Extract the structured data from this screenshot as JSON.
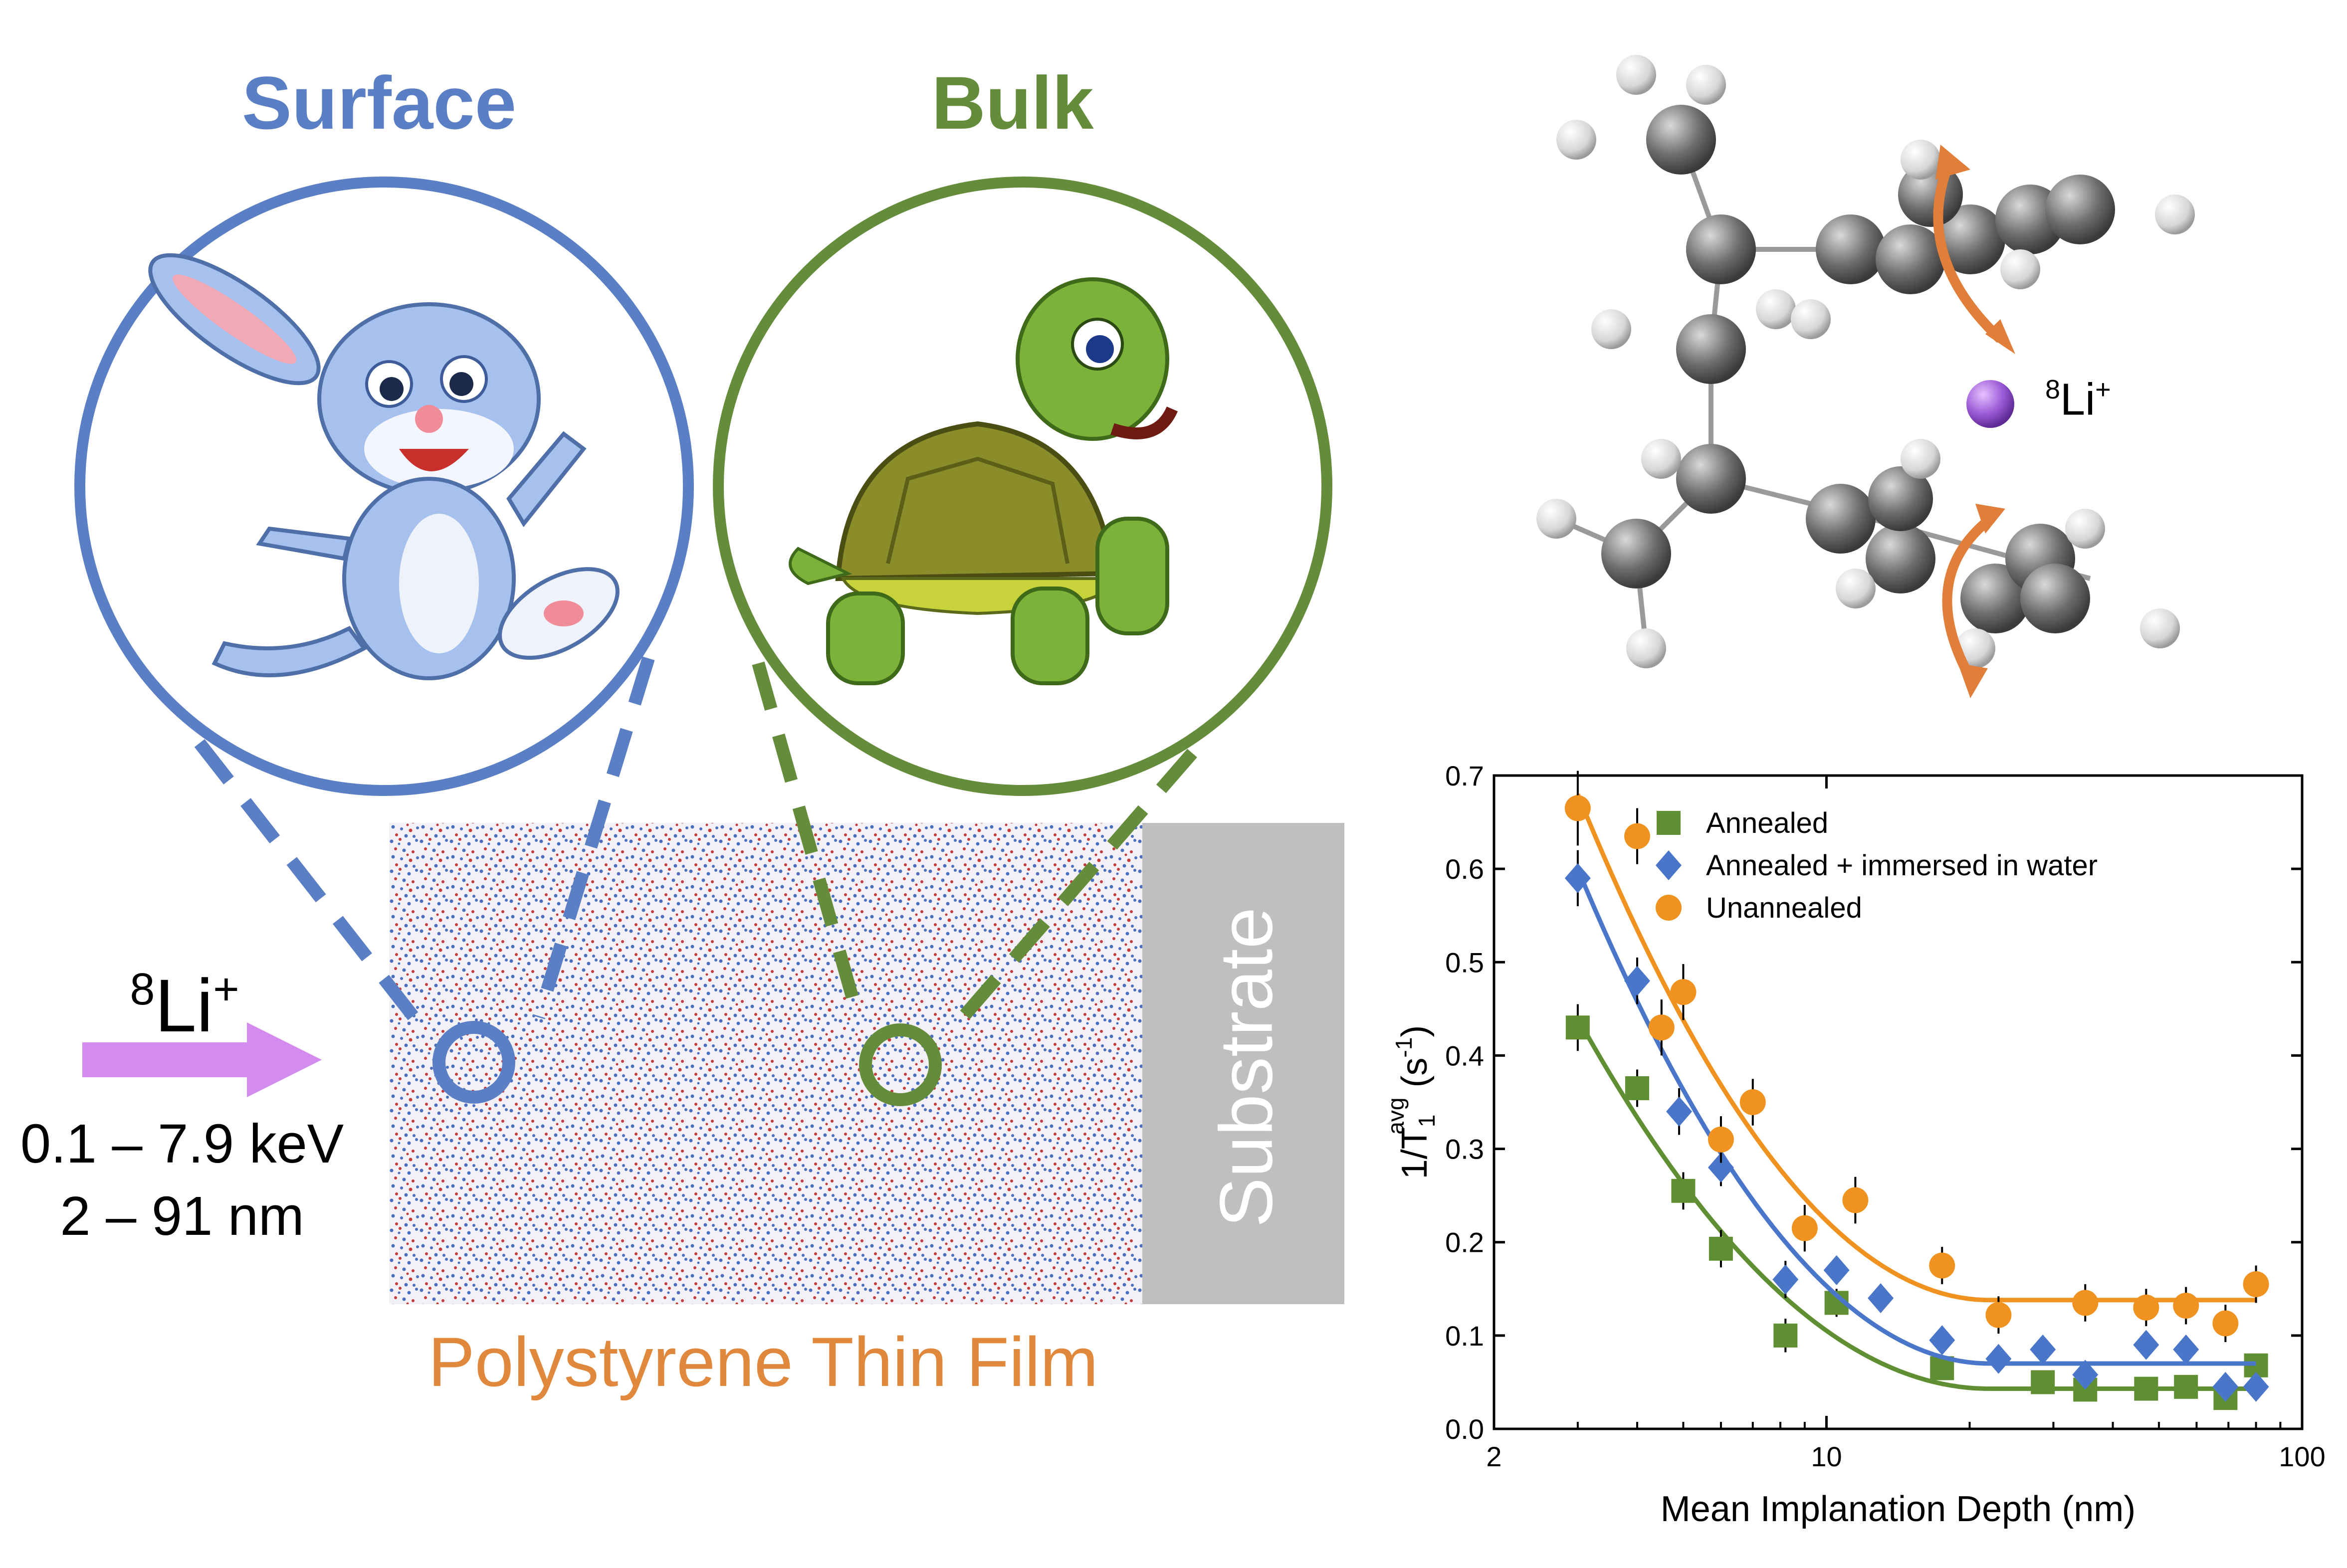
{
  "figure": {
    "surface_label": "Surface",
    "bulk_label": "Bulk",
    "film_label": "Polystyrene Thin Film",
    "substrate_label": "Substrate",
    "ion_label_base": "Li",
    "ion_label_mass": "8",
    "ion_label_charge": "+",
    "energy_range": "0.1 – 7.9 keV",
    "depth_range": "2 – 91 nm",
    "molecule_ion_label_mass": "8",
    "molecule_ion_label_base": "Li",
    "molecule_ion_label_charge": "+",
    "colors": {
      "surface": "#5b7fc4",
      "bulk": "#648c3a",
      "film_text": "#e0883c",
      "arrow": "#d58cf0",
      "substrate": "#bfbfbf",
      "rotation_arrow": "#e07e3a",
      "li_ion": "#9b59d6"
    },
    "icons": [
      "rabbit-icon",
      "turtle-icon",
      "lithium-ion-icon",
      "molecule-icon"
    ]
  },
  "chart_data": {
    "type": "scatter",
    "xscale": "log",
    "xlim": [
      2,
      100
    ],
    "ylim": [
      0,
      0.7
    ],
    "xticks": [
      "2",
      "10",
      "100"
    ],
    "yticks": [
      "0.0",
      "0.1",
      "0.2",
      "0.3",
      "0.4",
      "0.5",
      "0.6",
      "0.7"
    ],
    "xlabel": "Mean Implanation Depth (nm)",
    "ylabel_main": "1/T",
    "ylabel_sub": "1",
    "ylabel_sup": "avg",
    "ylabel_unit": " (s",
    "ylabel_unit_sup": "-1",
    "ylabel_close": ")",
    "legend_position": "top-right",
    "series": [
      {
        "name": "Annealed",
        "marker": "square",
        "color": "#5f8f32",
        "x": [
          3.0,
          4.0,
          5.0,
          6.0,
          8.2,
          10.5,
          17.5,
          28.5,
          35.0,
          47.0,
          57.0,
          69.0,
          80.0
        ],
        "y": [
          0.43,
          0.365,
          0.255,
          0.193,
          0.1,
          0.135,
          0.065,
          0.05,
          0.042,
          0.043,
          0.045,
          0.033,
          0.068
        ],
        "err": [
          0.025,
          0.02,
          0.02,
          0.02,
          0.018,
          0.015,
          0.012,
          0.01,
          0.01,
          0.01,
          0.01,
          0.01,
          0.01
        ],
        "fit": {
          "y0": 0.44,
          "x_knee": 22.0,
          "floor": 0.043,
          "x_start": 3.0,
          "x_end": 80.0
        }
      },
      {
        "name": "Annealed + immersed in water",
        "marker": "diamond",
        "color": "#4a76c9",
        "x": [
          3.0,
          4.0,
          4.9,
          6.0,
          8.2,
          10.5,
          13.0,
          17.5,
          23.0,
          28.5,
          35.0,
          47.0,
          57.0,
          69.0,
          80.0
        ],
        "y": [
          0.59,
          0.48,
          0.34,
          0.28,
          0.16,
          0.17,
          0.14,
          0.095,
          0.075,
          0.085,
          0.058,
          0.09,
          0.085,
          0.045,
          0.045
        ],
        "err": [
          0.03,
          0.025,
          0.025,
          0.02,
          0.02,
          0.015,
          0.015,
          0.015,
          0.012,
          0.012,
          0.012,
          0.012,
          0.012,
          0.01,
          0.01
        ],
        "fit": {
          "y0": 0.6,
          "x_knee": 22.0,
          "floor": 0.07,
          "x_start": 3.0,
          "x_end": 80.0
        }
      },
      {
        "name": "Unannealed",
        "marker": "circle",
        "color": "#f0921f",
        "x": [
          3.0,
          4.0,
          4.5,
          5.0,
          6.0,
          7.0,
          9.0,
          11.5,
          17.5,
          23.0,
          35.0,
          47.0,
          57.0,
          69.0,
          80.0
        ],
        "y": [
          0.665,
          0.635,
          0.43,
          0.468,
          0.31,
          0.35,
          0.215,
          0.245,
          0.175,
          0.122,
          0.135,
          0.13,
          0.132,
          0.113,
          0.155
        ],
        "err": [
          0.04,
          0.03,
          0.03,
          0.03,
          0.025,
          0.025,
          0.025,
          0.025,
          0.02,
          0.02,
          0.02,
          0.02,
          0.02,
          0.02,
          0.02
        ],
        "fit": {
          "y0": 0.68,
          "x_knee": 22.0,
          "floor": 0.138,
          "x_start": 3.0,
          "x_end": 80.0
        }
      }
    ]
  }
}
